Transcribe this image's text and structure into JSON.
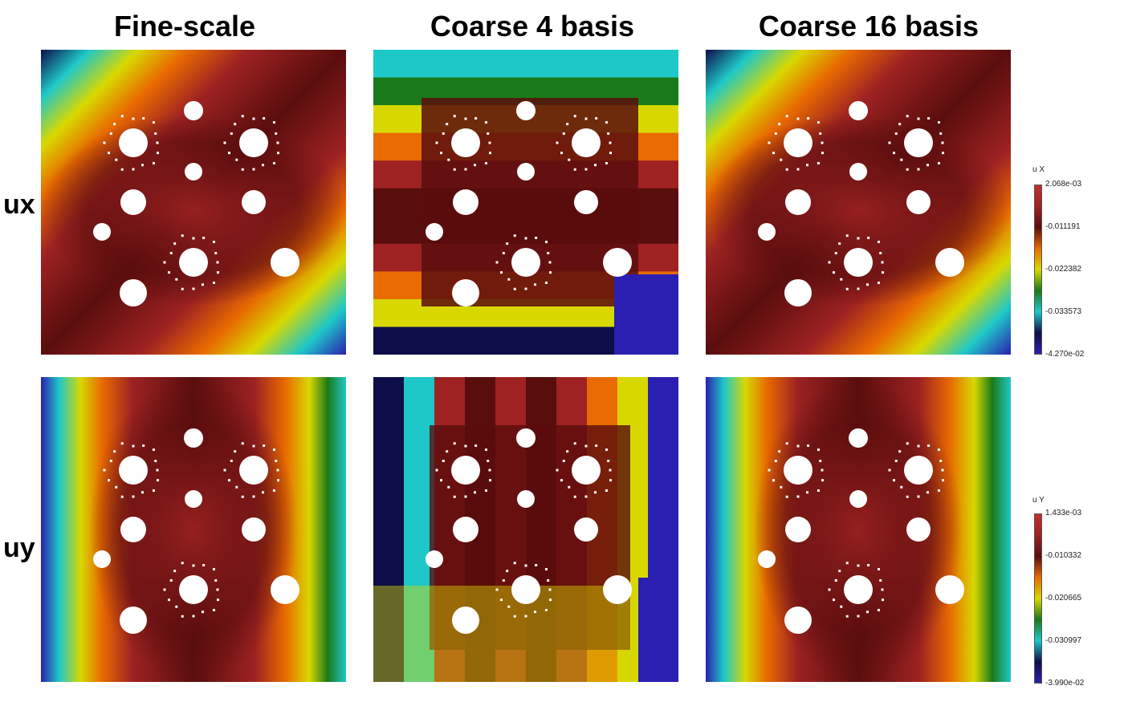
{
  "columns": [
    {
      "title": "Fine-scale"
    },
    {
      "title": "Coarse 4 basis"
    },
    {
      "title": "Coarse 16 basis"
    }
  ],
  "rows": [
    {
      "label": "ux"
    },
    {
      "label": "uy"
    }
  ],
  "colorbars": [
    {
      "title": "u X",
      "ticks": [
        "2.068e-03",
        "-0.011191",
        "-0.022382",
        "-0.033573",
        "-4.270e-02"
      ]
    },
    {
      "title": "u Y",
      "ticks": [
        "1.433e-03",
        "-0.010332",
        "-0.020665",
        "-0.030997",
        "-3.990e-02"
      ]
    }
  ],
  "colormap": [
    "#2a1fb0",
    "#0d0d4a",
    "#1ec8c8",
    "#1a7a1a",
    "#d8d800",
    "#e86a00",
    "#9e2222",
    "#5a0d0d",
    "#c03030"
  ]
}
